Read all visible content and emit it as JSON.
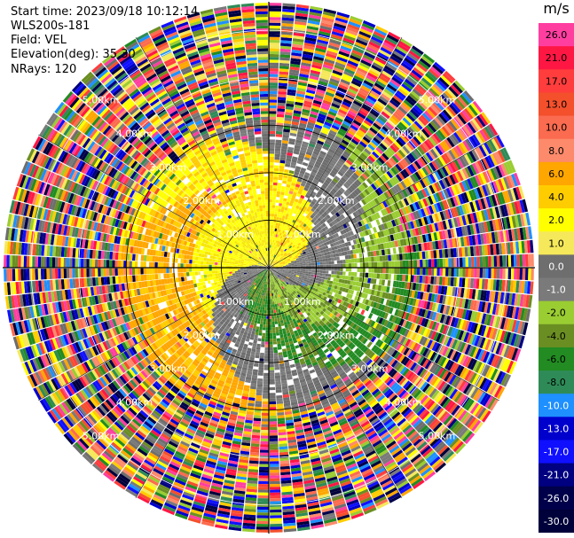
{
  "header": {
    "start_time": "Start time: 2023/09/18 10:12:14",
    "instrument": "WLS200s-181",
    "field": "Field: VEL",
    "elevation": "Elevation(deg): 35.30",
    "nrays": "NRays: 120"
  },
  "chart_data": {
    "type": "heatmap",
    "projection": "polar PPI",
    "field": "VEL",
    "units": "m/s",
    "nrays": 120,
    "elevation_deg": 35.3,
    "range_rings_km": [
      1.0,
      2.0,
      3.0,
      4.0,
      5.0
    ],
    "max_range_km": 5.6,
    "ring_labels": [
      "1.00km",
      "2.00km",
      "3.00km",
      "4.00km",
      "5.00km"
    ],
    "colorbar": {
      "unit_label": "m/s",
      "ticks": [
        "26.0",
        "21.0",
        "17.0",
        "13.0",
        "10.0",
        "8.0",
        "6.0",
        "4.0",
        "2.0",
        "1.0",
        "0.0",
        "-1.0",
        "-2.0",
        "-4.0",
        "-6.0",
        "-8.0",
        "-10.0",
        "-13.0",
        "-17.0",
        "-21.0",
        "-26.0",
        "-30.0"
      ],
      "colors": [
        "#ff3ea0",
        "#ff1744",
        "#ff3d3d",
        "#f4502c",
        "#fb6b4f",
        "#fd8a6b",
        "#ffa600",
        "#ffcc00",
        "#ffff00",
        "#f5e85a",
        "#6e6e6e",
        "#7a7a7a",
        "#9acd32",
        "#6b8e23",
        "#228b22",
        "#2e8b57",
        "#1e90ff",
        "#0000cd",
        "#1010ff",
        "#000080",
        "#00004a",
        "#00003a"
      ]
    }
  }
}
